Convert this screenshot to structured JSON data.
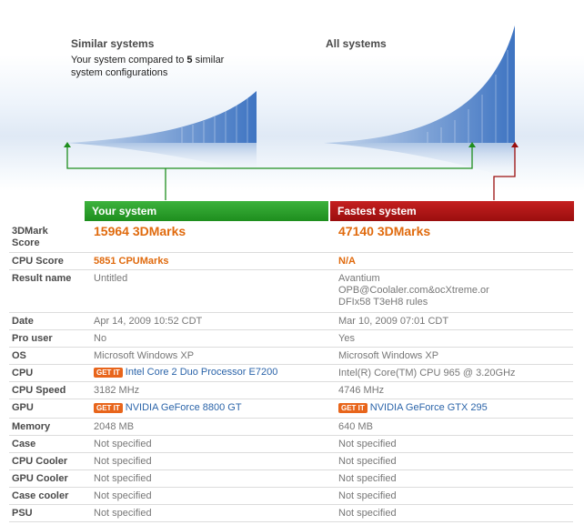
{
  "similar": {
    "title": "Similar systems",
    "subtitle_pre": "Your system compared to ",
    "subtitle_count": "5",
    "subtitle_post": " similar system configurations"
  },
  "all": {
    "title": "All systems"
  },
  "headers": {
    "yours": "Your system",
    "fastest": "Fastest system"
  },
  "rows": [
    {
      "label": "3DMark Score",
      "yours": "15964 3DMarks",
      "fastest": "47140 3DMarks"
    },
    {
      "label": "CPU Score",
      "yours": "5851 CPUMarks",
      "fastest": "N/A"
    },
    {
      "label": "Result name",
      "yours": "Untitled",
      "fastest_lines": [
        "Avantium",
        "OPB@Coolaler.com&ocXtreme.or",
        "DFIx58 T3eH8 rules"
      ]
    },
    {
      "label": "Date",
      "yours": "Apr 14, 2009 10:52 CDT",
      "fastest": "Mar 10, 2009 07:01 CDT"
    },
    {
      "label": "Pro user",
      "yours": "No",
      "fastest": "Yes"
    },
    {
      "label": "OS",
      "yours": "Microsoft Windows XP",
      "fastest": "Microsoft Windows XP"
    },
    {
      "label": "CPU",
      "yours": "Intel Core 2 Duo Processor E7200",
      "fastest": "Intel(R) Core(TM) CPU 965 @ 3.20GHz"
    },
    {
      "label": "CPU Speed",
      "yours": "3182 MHz",
      "fastest": "4746 MHz"
    },
    {
      "label": "GPU",
      "yours": "NVIDIA GeForce 8800 GT",
      "fastest": "NVIDIA GeForce GTX 295"
    },
    {
      "label": "Memory",
      "yours": "2048 MB",
      "fastest": "640 MB"
    },
    {
      "label": "Case",
      "yours": "Not specified",
      "fastest": "Not specified"
    },
    {
      "label": "CPU Cooler",
      "yours": "Not specified",
      "fastest": "Not specified"
    },
    {
      "label": "GPU Cooler",
      "yours": "Not specified",
      "fastest": "Not specified"
    },
    {
      "label": "Case cooler",
      "yours": "Not specified",
      "fastest": "Not specified"
    },
    {
      "label": "PSU",
      "yours": "Not specified",
      "fastest": "Not specified"
    }
  ],
  "getit_label": "GET IT",
  "colors": {
    "green": "#1e8e1e",
    "red": "#9a0e0e",
    "score_orange": "#e06a0d",
    "link_blue": "#2b64a9"
  },
  "icons": {
    "marker_yours": "green-up-arrow-icon",
    "marker_fastest": "red-up-arrow-icon"
  }
}
